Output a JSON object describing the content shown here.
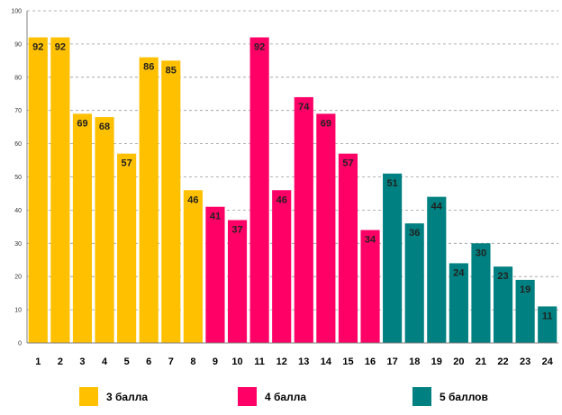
{
  "chart_data": {
    "type": "bar",
    "title": "",
    "xlabel": "",
    "ylabel": "",
    "ylim": [
      0,
      100
    ],
    "yticks": [
      0,
      10,
      20,
      30,
      40,
      50,
      60,
      70,
      80,
      90,
      100
    ],
    "grid": true,
    "legend_position": "bottom",
    "categories": [
      "1",
      "2",
      "3",
      "4",
      "5",
      "6",
      "7",
      "8",
      "9",
      "10",
      "11",
      "12",
      "13",
      "14",
      "15",
      "16",
      "17",
      "18",
      "19",
      "20",
      "21",
      "22",
      "23",
      "24"
    ],
    "values": [
      92,
      92,
      69,
      68,
      57,
      86,
      85,
      46,
      41,
      37,
      92,
      46,
      74,
      69,
      57,
      34,
      51,
      36,
      44,
      24,
      30,
      23,
      19,
      11
    ],
    "series": [
      {
        "name": "3 балла",
        "color": "#FFC000",
        "categories": [
          "1",
          "2",
          "3",
          "4",
          "5",
          "6",
          "7",
          "8"
        ]
      },
      {
        "name": "4 балла",
        "color": "#FF0066",
        "categories": [
          "9",
          "10",
          "11",
          "12",
          "13",
          "14",
          "15",
          "16"
        ]
      },
      {
        "name": "5 баллов",
        "color": "#008080",
        "categories": [
          "17",
          "18",
          "19",
          "20",
          "21",
          "22",
          "23",
          "24"
        ]
      }
    ]
  }
}
